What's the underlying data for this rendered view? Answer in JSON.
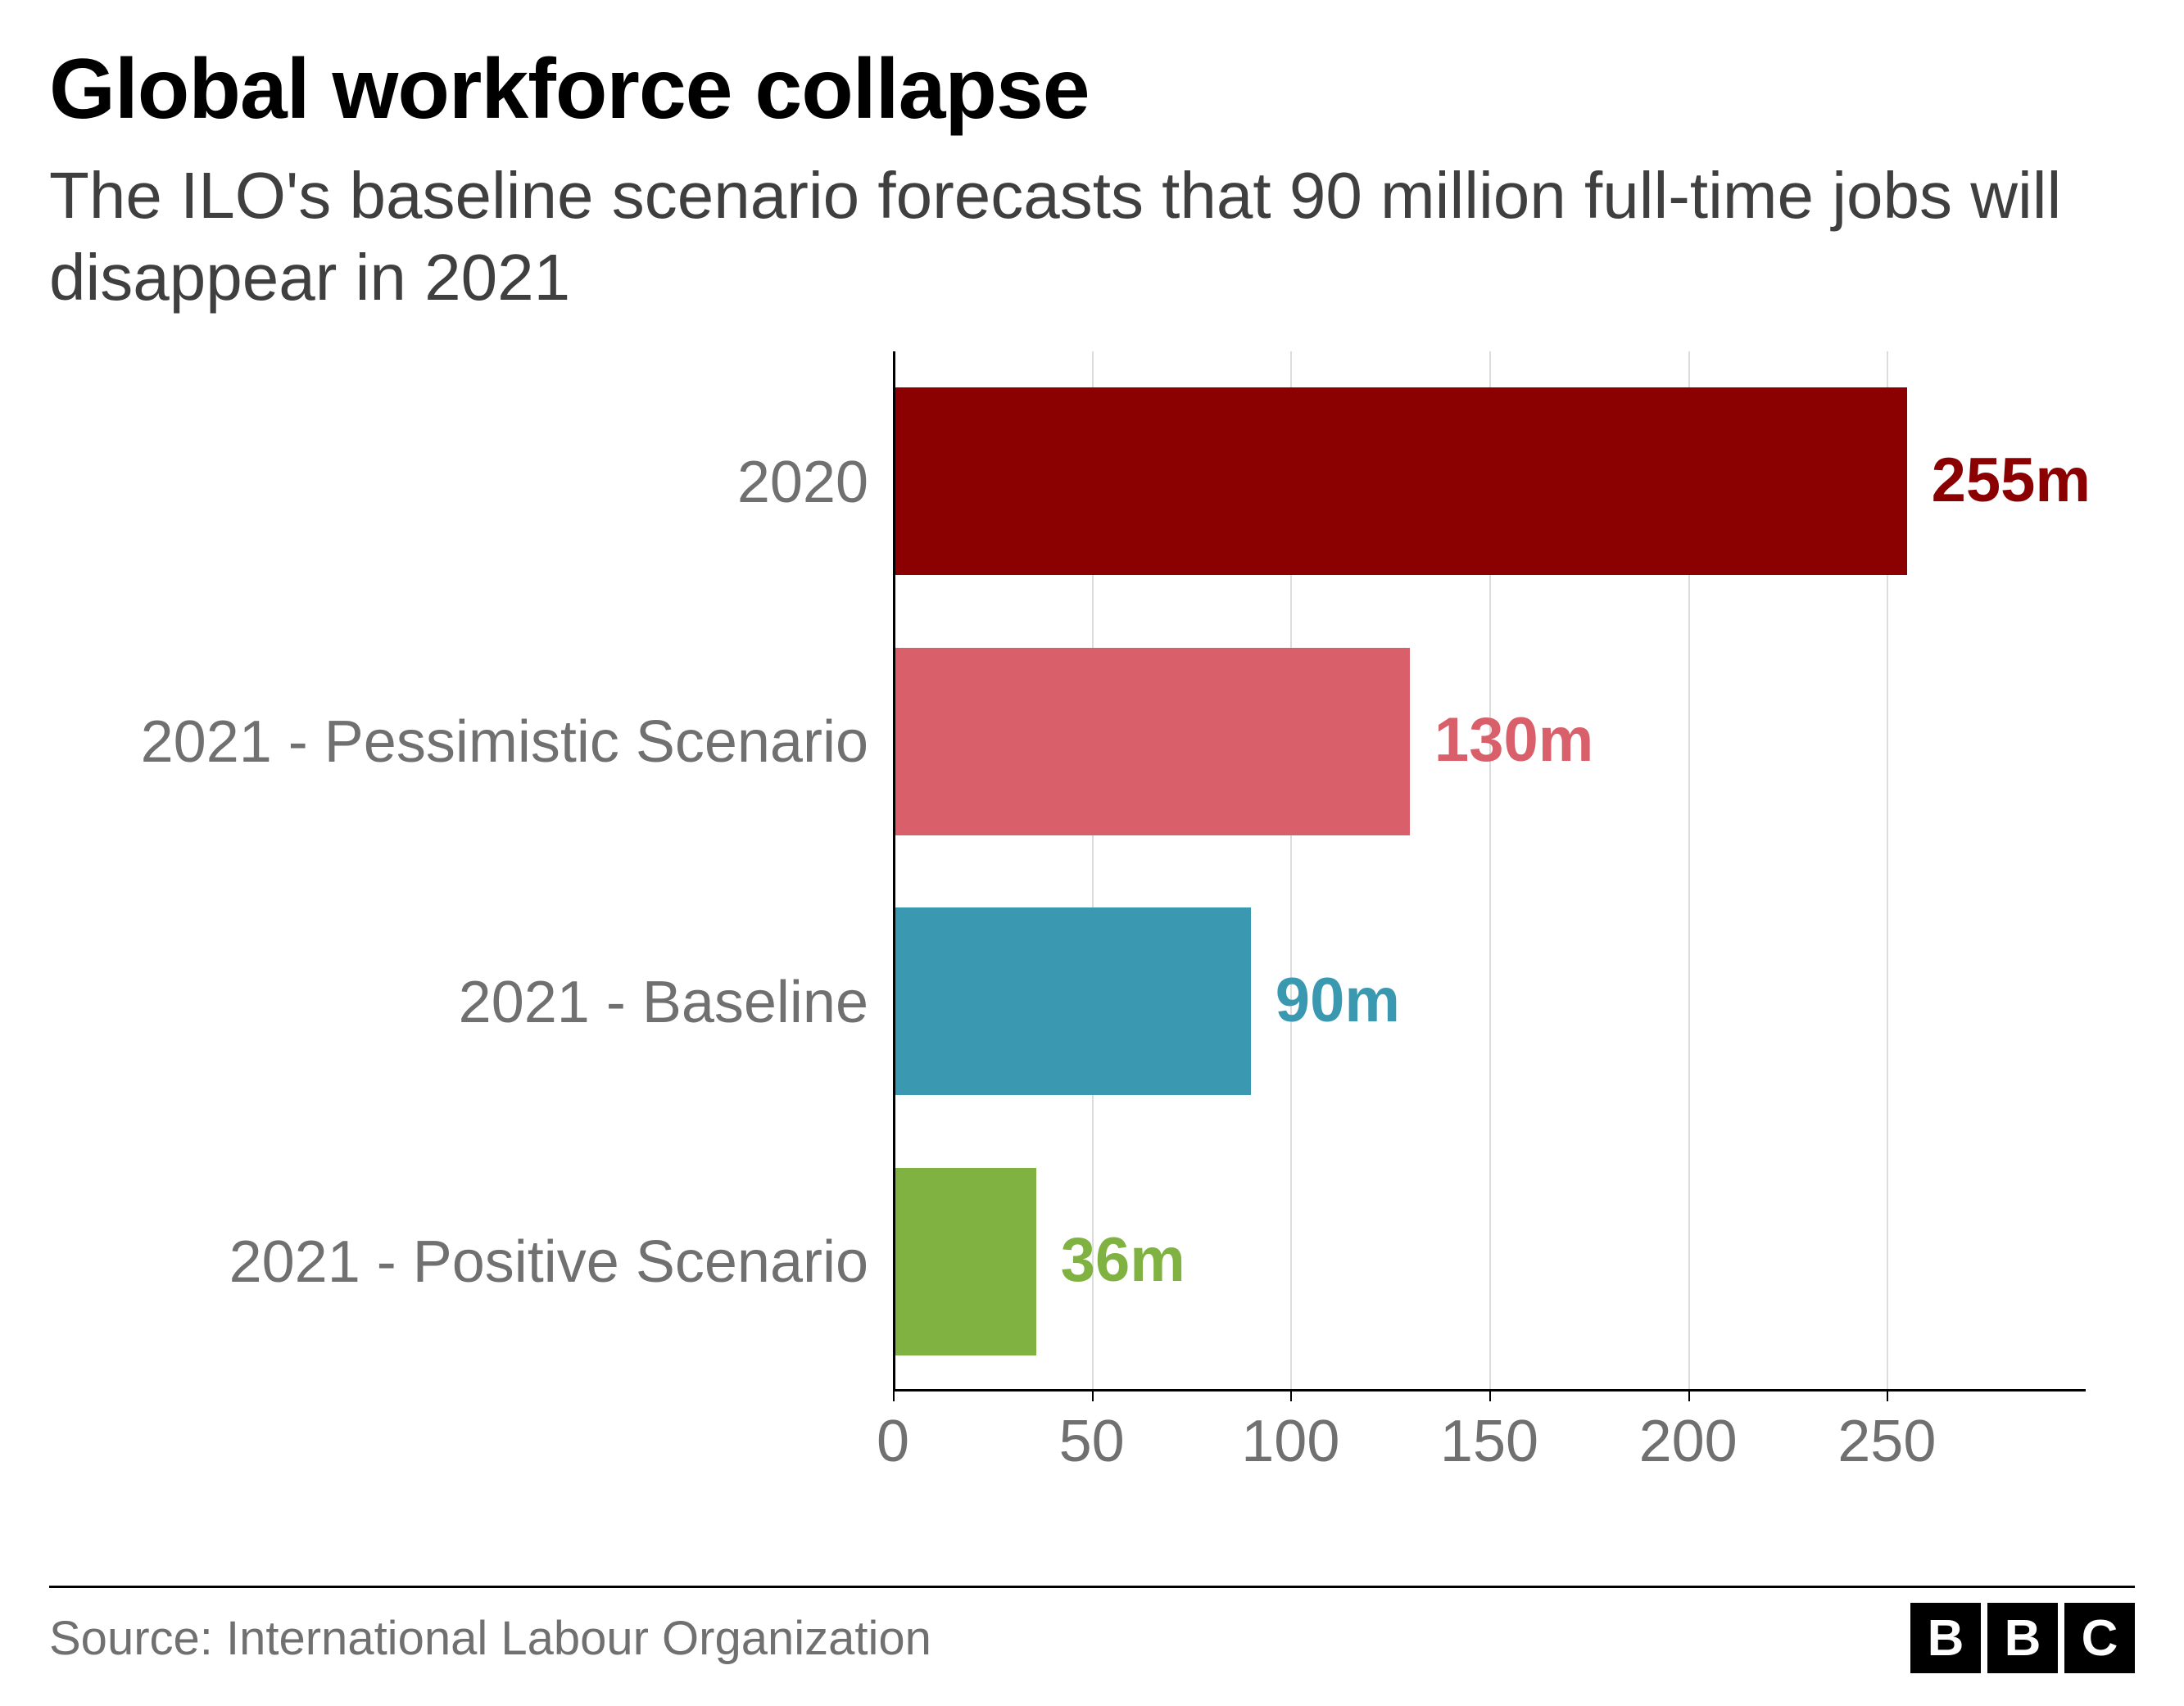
{
  "title": "Global workforce collapse",
  "subtitle": "The ILO's baseline scenario forecasts that 90 million full-time jobs will disappear in 2021",
  "source": "Source: International Labour Organization",
  "logo_letters": [
    "B",
    "B",
    "C"
  ],
  "chart": {
    "type": "bar-horizontal",
    "background_color": "#ffffff",
    "grid_color": "#dcdcdc",
    "axis_color": "#000000",
    "label_color": "#707070",
    "title_fontsize": 104,
    "subtitle_fontsize": 80,
    "label_fontsize": 72,
    "value_fontsize": 76,
    "xlim": [
      0,
      300
    ],
    "xtick_step": 50,
    "xticks": [
      0,
      50,
      100,
      150,
      200,
      250
    ],
    "bar_gap_ratio": 0.28,
    "series": [
      {
        "category": "2020",
        "value": 255,
        "value_label": "255m",
        "color": "#8b0000",
        "value_label_color": "#8b0000"
      },
      {
        "category": "2021 - Pessimistic Scenario",
        "value": 130,
        "value_label": "130m",
        "color": "#d9606a",
        "value_label_color": "#d9606a"
      },
      {
        "category": "2021 - Baseline",
        "value": 90,
        "value_label": "90m",
        "color": "#3a99b0",
        "value_label_color": "#3a99b0"
      },
      {
        "category": "2021 - Positive Scenario",
        "value": 36,
        "value_label": "36m",
        "color": "#7fb241",
        "value_label_color": "#7fb241"
      }
    ]
  }
}
